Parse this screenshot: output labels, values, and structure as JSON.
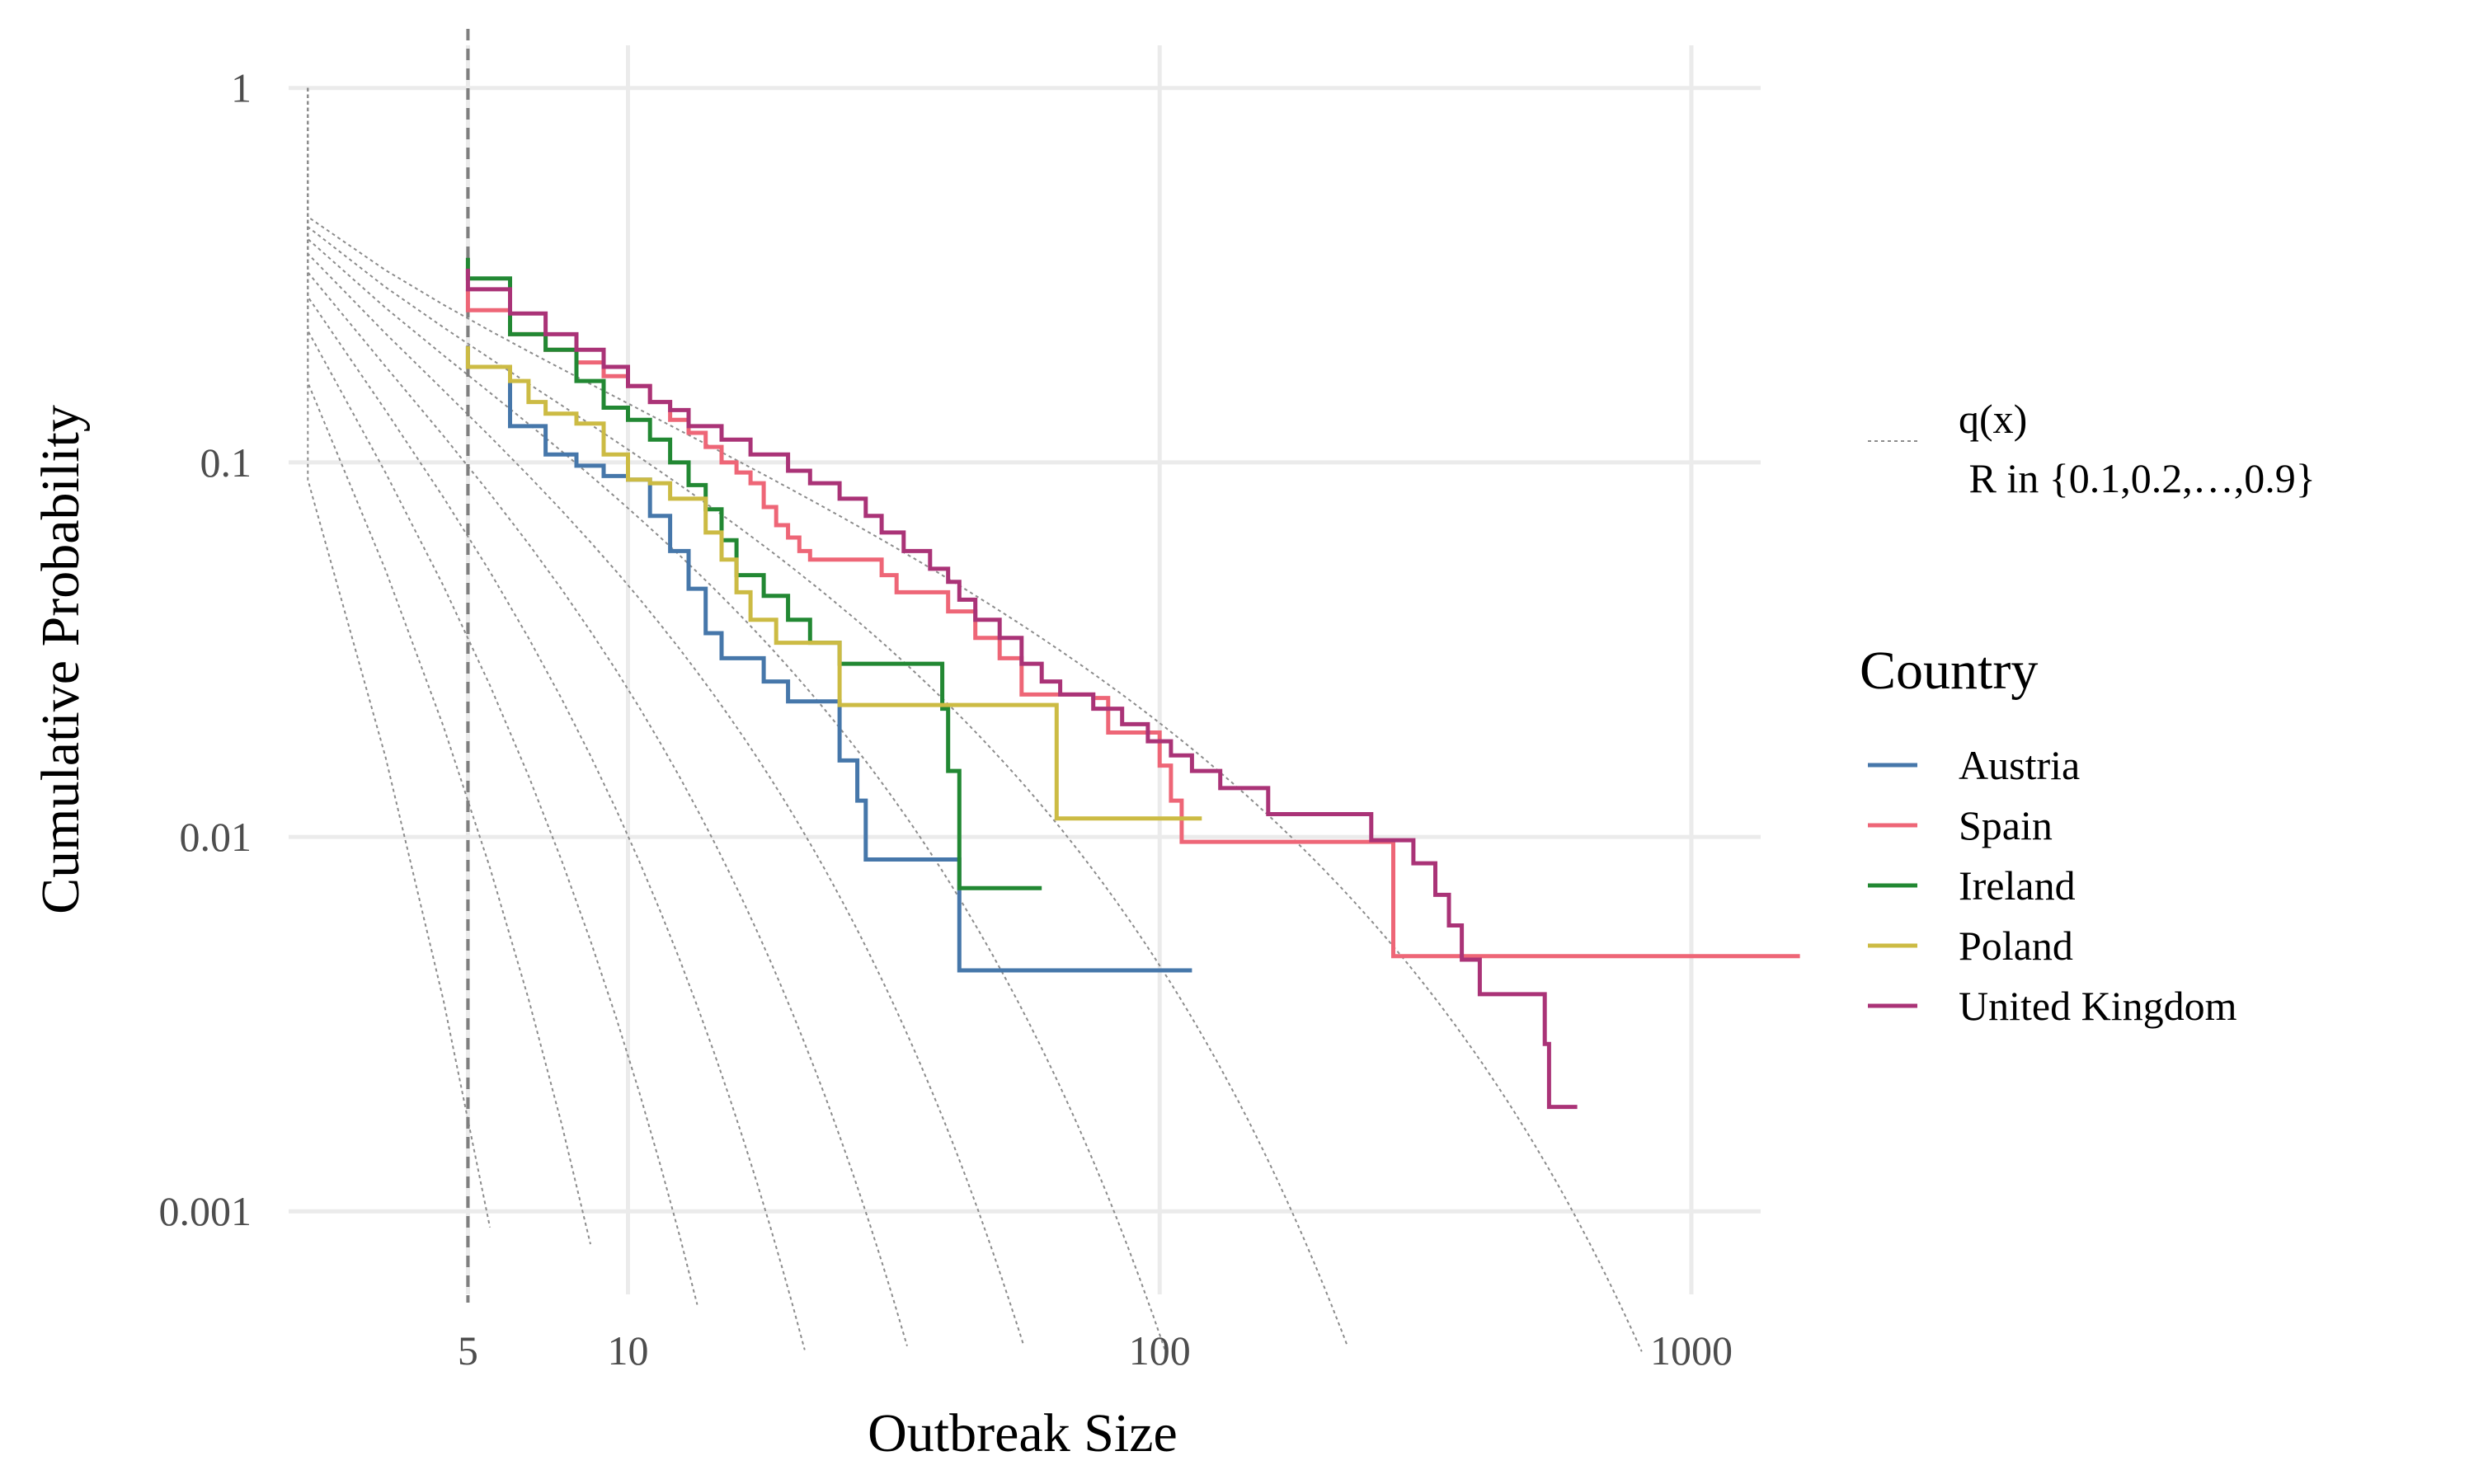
{
  "chart_data": {
    "type": "line",
    "xlabel": "Outbreak Size",
    "ylabel": "Cumulative Probability",
    "x_scale": "log10",
    "y_scale": "log10",
    "xlim": [
      2.3,
      1350
    ],
    "ylim": [
      0.0006,
      1.3
    ],
    "x_ticks": [
      {
        "value": 5,
        "label": "5"
      },
      {
        "value": 10,
        "label": "10"
      },
      {
        "value": 100,
        "label": "100"
      },
      {
        "value": 1000,
        "label": "1000"
      }
    ],
    "y_ticks": [
      {
        "value": 1,
        "label": "1"
      },
      {
        "value": 0.1,
        "label": "0.1"
      },
      {
        "value": 0.01,
        "label": "0.01"
      },
      {
        "value": 0.001,
        "label": "0.001"
      }
    ],
    "grid": true,
    "threshold_line": {
      "x": 5,
      "style": "dashed",
      "color": "#7f7f7f"
    },
    "reference_curves": {
      "label": "q(x)\n R in {0.1,0.2,…,0.9}",
      "R_values": [
        0.1,
        0.2,
        0.3,
        0.4,
        0.5,
        0.6,
        0.7,
        0.8,
        0.9
      ],
      "color": "#8c8c8c",
      "style": "dotted"
    },
    "legend": {
      "title": "Country",
      "placement": "right"
    },
    "series": [
      {
        "name": "Austria",
        "color": "#4677aa",
        "steps": [
          [
            5,
            0.18
          ],
          [
            6,
            0.125
          ],
          [
            7,
            0.105
          ],
          [
            8,
            0.098
          ],
          [
            9,
            0.092
          ],
          [
            10,
            0.09
          ],
          [
            11,
            0.072
          ],
          [
            12,
            0.058
          ],
          [
            13,
            0.046
          ],
          [
            14,
            0.035
          ],
          [
            15,
            0.03
          ],
          [
            18,
            0.026
          ],
          [
            20,
            0.023
          ],
          [
            25,
            0.016
          ],
          [
            27,
            0.0125
          ],
          [
            28,
            0.0087
          ],
          [
            40,
            0.0087
          ],
          [
            42,
            0.0044
          ],
          [
            115,
            0.0044
          ]
        ]
      },
      {
        "name": "Spain",
        "color": "#ee6677",
        "steps": [
          [
            5,
            0.255
          ],
          [
            6,
            0.22
          ],
          [
            7,
            0.2
          ],
          [
            8,
            0.185
          ],
          [
            9,
            0.17
          ],
          [
            10,
            0.16
          ],
          [
            11,
            0.145
          ],
          [
            12,
            0.13
          ],
          [
            13,
            0.12
          ],
          [
            14,
            0.11
          ],
          [
            15,
            0.1
          ],
          [
            16,
            0.094
          ],
          [
            17,
            0.088
          ],
          [
            18,
            0.076
          ],
          [
            19,
            0.068
          ],
          [
            20,
            0.063
          ],
          [
            21,
            0.058
          ],
          [
            22,
            0.055
          ],
          [
            30,
            0.05
          ],
          [
            32,
            0.045
          ],
          [
            40,
            0.04
          ],
          [
            45,
            0.034
          ],
          [
            50,
            0.03
          ],
          [
            55,
            0.024
          ],
          [
            75,
            0.0235
          ],
          [
            80,
            0.019
          ],
          [
            100,
            0.0155
          ],
          [
            105,
            0.0125
          ],
          [
            110,
            0.0097
          ],
          [
            270,
            0.0097
          ],
          [
            275,
            0.0048
          ],
          [
            1600,
            0.0048
          ]
        ]
      },
      {
        "name": "Ireland",
        "color": "#228833",
        "steps": [
          [
            5,
            0.31
          ],
          [
            6,
            0.22
          ],
          [
            7,
            0.2
          ],
          [
            8,
            0.165
          ],
          [
            9,
            0.14
          ],
          [
            10,
            0.13
          ],
          [
            11,
            0.115
          ],
          [
            12,
            0.1
          ],
          [
            13,
            0.087
          ],
          [
            14,
            0.075
          ],
          [
            15,
            0.062
          ],
          [
            16,
            0.05
          ],
          [
            18,
            0.044
          ],
          [
            20,
            0.038
          ],
          [
            22,
            0.033
          ],
          [
            25,
            0.029
          ],
          [
            30,
            0.029
          ],
          [
            39,
            0.022
          ],
          [
            40,
            0.015
          ],
          [
            42,
            0.0073
          ],
          [
            60,
            0.0073
          ]
        ]
      },
      {
        "name": "Poland",
        "color": "#ccbb44",
        "steps": [
          [
            5,
            0.18
          ],
          [
            6,
            0.165
          ],
          [
            6.5,
            0.145
          ],
          [
            7,
            0.135
          ],
          [
            8,
            0.127
          ],
          [
            9,
            0.105
          ],
          [
            10,
            0.09
          ],
          [
            11,
            0.088
          ],
          [
            12,
            0.08
          ],
          [
            14,
            0.065
          ],
          [
            15,
            0.055
          ],
          [
            16,
            0.045
          ],
          [
            17,
            0.038
          ],
          [
            19,
            0.033
          ],
          [
            23,
            0.033
          ],
          [
            25,
            0.0225
          ],
          [
            63,
            0.0225
          ],
          [
            64,
            0.0112
          ],
          [
            120,
            0.0112
          ]
        ]
      },
      {
        "name": "United Kingdom",
        "color": "#aa3377",
        "steps": [
          [
            5,
            0.29
          ],
          [
            6,
            0.25
          ],
          [
            7,
            0.22
          ],
          [
            8,
            0.2
          ],
          [
            9,
            0.18
          ],
          [
            10,
            0.16
          ],
          [
            11,
            0.145
          ],
          [
            12,
            0.138
          ],
          [
            13,
            0.125
          ],
          [
            15,
            0.115
          ],
          [
            17,
            0.105
          ],
          [
            20,
            0.095
          ],
          [
            22,
            0.088
          ],
          [
            25,
            0.08
          ],
          [
            28,
            0.072
          ],
          [
            30,
            0.065
          ],
          [
            33,
            0.058
          ],
          [
            37,
            0.052
          ],
          [
            40,
            0.048
          ],
          [
            42,
            0.043
          ],
          [
            45,
            0.038
          ],
          [
            50,
            0.034
          ],
          [
            55,
            0.029
          ],
          [
            60,
            0.026
          ],
          [
            65,
            0.024
          ],
          [
            75,
            0.022
          ],
          [
            85,
            0.02
          ],
          [
            95,
            0.018
          ],
          [
            105,
            0.0165
          ],
          [
            115,
            0.015
          ],
          [
            130,
            0.0135
          ],
          [
            160,
            0.0115
          ],
          [
            240,
            0.0115
          ],
          [
            250,
            0.0098
          ],
          [
            290,
            0.0098
          ],
          [
            300,
            0.0085
          ],
          [
            330,
            0.007
          ],
          [
            350,
            0.0058
          ],
          [
            370,
            0.0047
          ],
          [
            400,
            0.0038
          ],
          [
            520,
            0.0038
          ],
          [
            530,
            0.0028
          ],
          [
            540,
            0.0019
          ],
          [
            610,
            0.0019
          ]
        ]
      }
    ]
  }
}
